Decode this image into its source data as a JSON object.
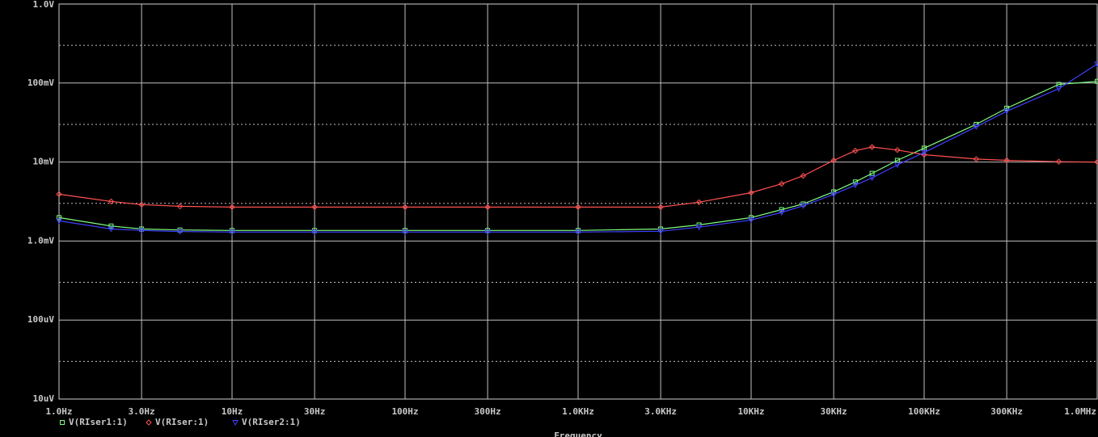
{
  "chart_data": {
    "type": "line",
    "x_label": "Frequency",
    "log_x": true,
    "log_y": true,
    "grid": true,
    "legend": "bottom-left",
    "x": [
      1,
      2,
      3,
      5,
      10,
      30,
      100,
      300,
      1000,
      3000,
      5000,
      10000,
      15000,
      20000,
      30000,
      40000,
      50000,
      70000,
      100000,
      200000,
      300000,
      600000,
      1000000
    ],
    "series": [
      {
        "name": "V(RIser1:1)",
        "color": "#7fff7f",
        "marker": "square",
        "values": [
          0.00198,
          0.00155,
          0.00142,
          0.00138,
          0.00136,
          0.00136,
          0.00136,
          0.00136,
          0.00136,
          0.00142,
          0.0016,
          0.00198,
          0.0025,
          0.00295,
          0.0042,
          0.0056,
          0.0072,
          0.0105,
          0.015,
          0.03,
          0.048,
          0.096,
          0.105
        ]
      },
      {
        "name": "V(RIser:1)",
        "color": "#ff5050",
        "marker": "diamond",
        "values": [
          0.00392,
          0.00317,
          0.00289,
          0.00275,
          0.00269,
          0.00269,
          0.00269,
          0.00269,
          0.00269,
          0.00269,
          0.0031,
          0.0041,
          0.0053,
          0.0067,
          0.0105,
          0.0139,
          0.0155,
          0.0142,
          0.0124,
          0.0109,
          0.0105,
          0.0101,
          0.01
        ]
      },
      {
        "name": "V(RIser2:1)",
        "color": "#4040ff",
        "marker": "triangle",
        "values": [
          0.0018,
          0.00142,
          0.00136,
          0.00132,
          0.0013,
          0.0013,
          0.0013,
          0.0013,
          0.0013,
          0.00133,
          0.0015,
          0.00185,
          0.0023,
          0.0028,
          0.0039,
          0.0051,
          0.0063,
          0.0092,
          0.0132,
          0.028,
          0.044,
          0.085,
          0.174
        ]
      }
    ],
    "xlim": [
      1,
      1000000
    ],
    "ylim": [
      1e-05,
      1
    ],
    "xticks": [
      {
        "value": 1,
        "label": "1.0Hz"
      },
      {
        "value": 3,
        "label": "3.0Hz"
      },
      {
        "value": 10,
        "label": "10Hz"
      },
      {
        "value": 30,
        "label": "30Hz"
      },
      {
        "value": 100,
        "label": "100Hz"
      },
      {
        "value": 300,
        "label": "300Hz"
      },
      {
        "value": 1000,
        "label": "1.0KHz"
      },
      {
        "value": 3000,
        "label": "3.0KHz"
      },
      {
        "value": 10000,
        "label": "10KHz"
      },
      {
        "value": 30000,
        "label": "30KHz"
      },
      {
        "value": 100000,
        "label": "100KHz"
      },
      {
        "value": 300000,
        "label": "300KHz"
      },
      {
        "value": 1000000,
        "label": "1.0MHz"
      }
    ],
    "yticks": [
      {
        "value": 1e-05,
        "label": "10uV"
      },
      {
        "value": 0.0001,
        "label": "100uV"
      },
      {
        "value": 0.001,
        "label": "1.0mV"
      },
      {
        "value": 0.01,
        "label": "10mV"
      },
      {
        "value": 0.1,
        "label": "100mV"
      },
      {
        "value": 1,
        "label": "1.0V"
      }
    ],
    "y_minor_grid": [
      3e-05,
      0.0003,
      0.003,
      0.03,
      0.3
    ]
  }
}
